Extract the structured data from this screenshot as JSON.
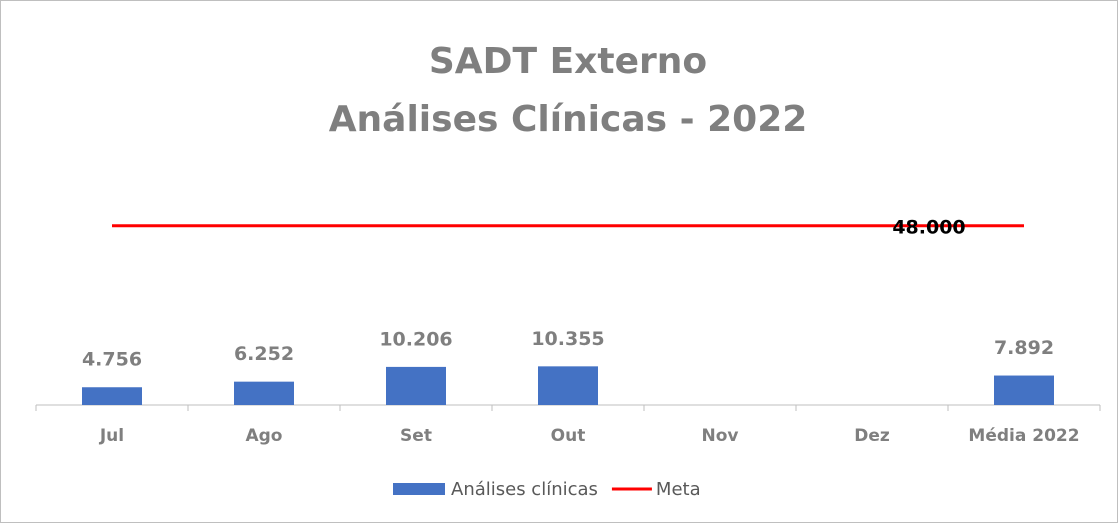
{
  "chart_data": {
    "type": "bar",
    "title": [
      "SADT Externo",
      "Análises Clínicas - 2022"
    ],
    "categories": [
      "Jul",
      "Ago",
      "Set",
      "Out",
      "Nov",
      "Dez",
      "Média 2022"
    ],
    "series": [
      {
        "name": "Análises clínicas",
        "type": "bar",
        "color": "#4472c4",
        "values": [
          4756,
          6252,
          10206,
          10355,
          null,
          null,
          7892
        ],
        "value_labels": [
          "4.756",
          "6.252",
          "10.206",
          "10.355",
          null,
          null,
          "7.892"
        ]
      },
      {
        "name": "Meta",
        "type": "line",
        "color": "#ff0000",
        "values": [
          48000,
          48000,
          48000,
          48000,
          48000,
          48000,
          48000
        ],
        "value_labels": [
          null,
          null,
          null,
          null,
          null,
          "48.000",
          null
        ]
      }
    ],
    "ylim": [
      0,
      60000
    ],
    "legend": "bottom"
  }
}
